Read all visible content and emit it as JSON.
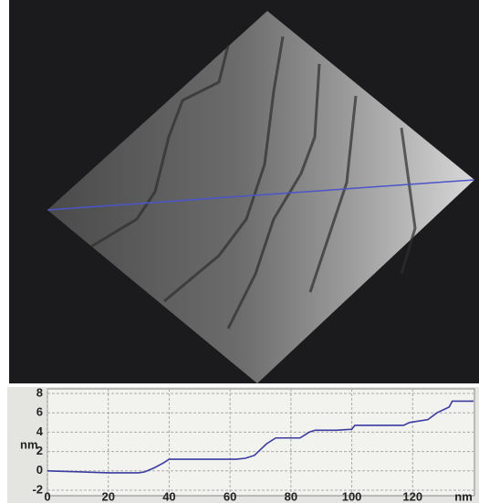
{
  "chart_data": {
    "type": "line",
    "x_label": "nm",
    "y_label": "nm",
    "xlim": [
      0,
      140
    ],
    "ylim": [
      -2,
      8
    ],
    "xticks": [
      0,
      20,
      40,
      60,
      80,
      100,
      120
    ],
    "yticks": [
      -2,
      0,
      2,
      4,
      6,
      8
    ],
    "grid": true,
    "x": [
      0,
      10,
      20,
      30,
      32,
      35,
      38,
      40,
      45,
      55,
      62,
      65,
      68,
      70,
      72,
      74,
      75,
      80,
      83,
      86,
      88,
      95,
      100,
      101,
      110,
      117,
      119,
      125,
      128,
      132,
      133,
      140
    ],
    "series": [
      {
        "color": "#3b3ba0",
        "values": [
          0,
          -0.1,
          -0.2,
          -0.2,
          -0.1,
          0.3,
          0.8,
          1.2,
          1.2,
          1.2,
          1.2,
          1.3,
          1.6,
          2.2,
          2.8,
          3.2,
          3.4,
          3.4,
          3.4,
          4.0,
          4.2,
          4.2,
          4.3,
          4.7,
          4.7,
          4.7,
          5.0,
          5.3,
          6.0,
          6.6,
          7.2,
          7.2
        ]
      }
    ]
  }
}
